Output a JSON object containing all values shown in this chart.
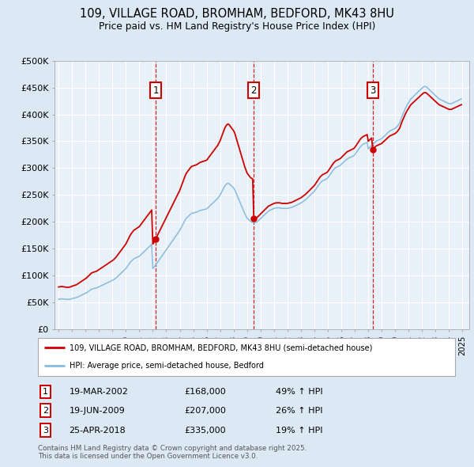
{
  "title_line1": "109, VILLAGE ROAD, BROMHAM, BEDFORD, MK43 8HU",
  "title_line2": "Price paid vs. HM Land Registry's House Price Index (HPI)",
  "ylim": [
    0,
    500000
  ],
  "yticks": [
    0,
    50000,
    100000,
    150000,
    200000,
    250000,
    300000,
    350000,
    400000,
    450000,
    500000
  ],
  "ytick_labels": [
    "£0",
    "£50K",
    "£100K",
    "£150K",
    "£200K",
    "£250K",
    "£300K",
    "£350K",
    "£400K",
    "£450K",
    "£500K"
  ],
  "xlim_start": 1994.7,
  "xlim_end": 2025.5,
  "fig_bg_color": "#dce9f5",
  "plot_bg_color": "#e8f0f8",
  "grid_color": "#ffffff",
  "sale_color": "#cc0000",
  "hpi_color": "#88bbdd",
  "sale_label": "109, VILLAGE ROAD, BROMHAM, BEDFORD, MK43 8HU (semi-detached house)",
  "hpi_label": "HPI: Average price, semi-detached house, Bedford",
  "transactions": [
    {
      "num": 1,
      "date": "19-MAR-2002",
      "price": 168000,
      "pct": "49%",
      "year": 2002.21
    },
    {
      "num": 2,
      "date": "19-JUN-2009",
      "price": 207000,
      "pct": "26%",
      "year": 2009.46
    },
    {
      "num": 3,
      "date": "25-APR-2018",
      "price": 335000,
      "pct": "19%",
      "year": 2018.32
    }
  ],
  "footer": "Contains HM Land Registry data © Crown copyright and database right 2025.\nThis data is licensed under the Open Government Licence v3.0.",
  "hpi_data": {
    "years": [
      1995.0,
      1995.083,
      1995.167,
      1995.25,
      1995.333,
      1995.417,
      1995.5,
      1995.583,
      1995.667,
      1995.75,
      1995.833,
      1995.917,
      1996.0,
      1996.083,
      1996.167,
      1996.25,
      1996.333,
      1996.417,
      1996.5,
      1996.583,
      1996.667,
      1996.75,
      1996.833,
      1996.917,
      1997.0,
      1997.083,
      1997.167,
      1997.25,
      1997.333,
      1997.417,
      1997.5,
      1997.583,
      1997.667,
      1997.75,
      1997.833,
      1997.917,
      1998.0,
      1998.083,
      1998.167,
      1998.25,
      1998.333,
      1998.417,
      1998.5,
      1998.583,
      1998.667,
      1998.75,
      1998.833,
      1998.917,
      1999.0,
      1999.083,
      1999.167,
      1999.25,
      1999.333,
      1999.417,
      1999.5,
      1999.583,
      1999.667,
      1999.75,
      1999.833,
      1999.917,
      2000.0,
      2000.083,
      2000.167,
      2000.25,
      2000.333,
      2000.417,
      2000.5,
      2000.583,
      2000.667,
      2000.75,
      2000.833,
      2000.917,
      2001.0,
      2001.083,
      2001.167,
      2001.25,
      2001.333,
      2001.417,
      2001.5,
      2001.583,
      2001.667,
      2001.75,
      2001.833,
      2001.917,
      2002.0,
      2002.083,
      2002.167,
      2002.25,
      2002.333,
      2002.417,
      2002.5,
      2002.583,
      2002.667,
      2002.75,
      2002.833,
      2002.917,
      2003.0,
      2003.083,
      2003.167,
      2003.25,
      2003.333,
      2003.417,
      2003.5,
      2003.583,
      2003.667,
      2003.75,
      2003.833,
      2003.917,
      2004.0,
      2004.083,
      2004.167,
      2004.25,
      2004.333,
      2004.417,
      2004.5,
      2004.583,
      2004.667,
      2004.75,
      2004.833,
      2004.917,
      2005.0,
      2005.083,
      2005.167,
      2005.25,
      2005.333,
      2005.417,
      2005.5,
      2005.583,
      2005.667,
      2005.75,
      2005.833,
      2005.917,
      2006.0,
      2006.083,
      2006.167,
      2006.25,
      2006.333,
      2006.417,
      2006.5,
      2006.583,
      2006.667,
      2006.75,
      2006.833,
      2006.917,
      2007.0,
      2007.083,
      2007.167,
      2007.25,
      2007.333,
      2007.417,
      2007.5,
      2007.583,
      2007.667,
      2007.75,
      2007.833,
      2007.917,
      2008.0,
      2008.083,
      2008.167,
      2008.25,
      2008.333,
      2008.417,
      2008.5,
      2008.583,
      2008.667,
      2008.75,
      2008.833,
      2008.917,
      2009.0,
      2009.083,
      2009.167,
      2009.25,
      2009.333,
      2009.417,
      2009.5,
      2009.583,
      2009.667,
      2009.75,
      2009.833,
      2009.917,
      2010.0,
      2010.083,
      2010.167,
      2010.25,
      2010.333,
      2010.417,
      2010.5,
      2010.583,
      2010.667,
      2010.75,
      2010.833,
      2010.917,
      2011.0,
      2011.083,
      2011.167,
      2011.25,
      2011.333,
      2011.417,
      2011.5,
      2011.583,
      2011.667,
      2011.75,
      2011.833,
      2011.917,
      2012.0,
      2012.083,
      2012.167,
      2012.25,
      2012.333,
      2012.417,
      2012.5,
      2012.583,
      2012.667,
      2012.75,
      2012.833,
      2012.917,
      2013.0,
      2013.083,
      2013.167,
      2013.25,
      2013.333,
      2013.417,
      2013.5,
      2013.583,
      2013.667,
      2013.75,
      2013.833,
      2013.917,
      2014.0,
      2014.083,
      2014.167,
      2014.25,
      2014.333,
      2014.417,
      2014.5,
      2014.583,
      2014.667,
      2014.75,
      2014.833,
      2014.917,
      2015.0,
      2015.083,
      2015.167,
      2015.25,
      2015.333,
      2015.417,
      2015.5,
      2015.583,
      2015.667,
      2015.75,
      2015.833,
      2015.917,
      2016.0,
      2016.083,
      2016.167,
      2016.25,
      2016.333,
      2016.417,
      2016.5,
      2016.583,
      2016.667,
      2016.75,
      2016.833,
      2016.917,
      2017.0,
      2017.083,
      2017.167,
      2017.25,
      2017.333,
      2017.417,
      2017.5,
      2017.583,
      2017.667,
      2017.75,
      2017.833,
      2017.917,
      2018.0,
      2018.083,
      2018.167,
      2018.25,
      2018.333,
      2018.417,
      2018.5,
      2018.583,
      2018.667,
      2018.75,
      2018.833,
      2018.917,
      2019.0,
      2019.083,
      2019.167,
      2019.25,
      2019.333,
      2019.417,
      2019.5,
      2019.583,
      2019.667,
      2019.75,
      2019.833,
      2019.917,
      2020.0,
      2020.083,
      2020.167,
      2020.25,
      2020.333,
      2020.417,
      2020.5,
      2020.583,
      2020.667,
      2020.75,
      2020.833,
      2020.917,
      2021.0,
      2021.083,
      2021.167,
      2021.25,
      2021.333,
      2021.417,
      2021.5,
      2021.583,
      2021.667,
      2021.75,
      2021.833,
      2021.917,
      2022.0,
      2022.083,
      2022.167,
      2022.25,
      2022.333,
      2022.417,
      2022.5,
      2022.583,
      2022.667,
      2022.75,
      2022.833,
      2022.917,
      2023.0,
      2023.083,
      2023.167,
      2023.25,
      2023.333,
      2023.417,
      2023.5,
      2023.583,
      2023.667,
      2023.75,
      2023.833,
      2023.917,
      2024.0,
      2024.083,
      2024.167,
      2024.25,
      2024.333,
      2024.417,
      2024.5,
      2024.583,
      2024.667,
      2024.75,
      2024.833,
      2024.917
    ],
    "values": [
      56000,
      56200,
      56400,
      56600,
      56400,
      56200,
      56000,
      55700,
      55400,
      55600,
      55900,
      56300,
      57000,
      57500,
      58000,
      58500,
      59000,
      60000,
      61000,
      62000,
      63000,
      64000,
      65000,
      66000,
      67000,
      68000,
      69500,
      71000,
      72500,
      74000,
      75000,
      75500,
      76000,
      76500,
      77000,
      78000,
      79000,
      80000,
      81000,
      82000,
      83000,
      84000,
      85000,
      86000,
      87000,
      88000,
      89000,
      90000,
      91000,
      92000,
      93500,
      95000,
      97000,
      99000,
      101000,
      103000,
      105000,
      107000,
      109000,
      111000,
      113000,
      116000,
      119000,
      122000,
      125000,
      127000,
      129000,
      131000,
      132000,
      133000,
      134000,
      135000,
      136000,
      138000,
      140000,
      142000,
      144000,
      146000,
      148000,
      150000,
      152000,
      154000,
      156000,
      158000,
      113000,
      115000,
      118000,
      121000,
      124000,
      127000,
      130000,
      133000,
      136000,
      139000,
      142000,
      145000,
      148000,
      151000,
      154000,
      157000,
      160000,
      163000,
      166000,
      169000,
      172000,
      175000,
      178000,
      181000,
      184000,
      188000,
      192000,
      196000,
      200000,
      204000,
      207000,
      209000,
      211000,
      213000,
      215000,
      216000,
      216500,
      217000,
      217500,
      218000,
      219000,
      220000,
      221000,
      221500,
      222000,
      222500,
      223000,
      223500,
      224000,
      226000,
      228000,
      230000,
      232000,
      234000,
      236000,
      238000,
      240000,
      242000,
      244000,
      247000,
      250000,
      254000,
      258000,
      262000,
      266000,
      269000,
      271000,
      272000,
      271000,
      269000,
      267000,
      265000,
      263000,
      260000,
      255000,
      250000,
      245000,
      240000,
      235000,
      230000,
      225000,
      220000,
      215000,
      211000,
      207000,
      205000,
      203000,
      201000,
      200000,
      199000,
      198500,
      198500,
      199000,
      200000,
      202000,
      204000,
      206000,
      208000,
      210000,
      212000,
      214000,
      216000,
      218000,
      220000,
      221000,
      222000,
      223000,
      224000,
      225000,
      225500,
      226000,
      226000,
      226000,
      226000,
      225500,
      225000,
      225000,
      225000,
      225000,
      225000,
      225000,
      225500,
      226000,
      226500,
      227000,
      228000,
      229000,
      230000,
      231000,
      232000,
      233000,
      234000,
      235000,
      236500,
      238000,
      239500,
      241000,
      243000,
      245000,
      247000,
      249000,
      251000,
      253000,
      255000,
      257000,
      260000,
      263000,
      266000,
      269000,
      272000,
      274000,
      276000,
      277000,
      278000,
      279000,
      280000,
      282000,
      285000,
      288000,
      291000,
      294000,
      297000,
      299000,
      301000,
      302000,
      303000,
      304000,
      305000,
      307000,
      309000,
      311000,
      313000,
      315000,
      317000,
      318000,
      319000,
      320000,
      321000,
      322000,
      323000,
      325000,
      328000,
      331000,
      334000,
      337000,
      340000,
      342000,
      344000,
      345000,
      346000,
      347000,
      348000,
      336000,
      338000,
      340000,
      342000,
      344000,
      346000,
      348000,
      350000,
      351000,
      352000,
      353000,
      354000,
      355000,
      357000,
      359000,
      361000,
      363000,
      365000,
      367000,
      369000,
      370000,
      371000,
      372000,
      373000,
      374000,
      376000,
      378000,
      381000,
      384000,
      390000,
      396000,
      401000,
      406000,
      411000,
      415000,
      419000,
      422000,
      426000,
      429000,
      431000,
      433000,
      435000,
      437000,
      439000,
      441000,
      443000,
      445000,
      447000,
      449000,
      451000,
      452000,
      452000,
      451000,
      449000,
      447000,
      445000,
      443000,
      441000,
      439000,
      437000,
      435000,
      433000,
      431000,
      429000,
      428000,
      427000,
      426000,
      425000,
      424000,
      423000,
      422000,
      421000,
      420000,
      420000,
      420000,
      421000,
      422000,
      423000,
      424000,
      425000,
      426000,
      427000,
      428000,
      429000
    ]
  }
}
